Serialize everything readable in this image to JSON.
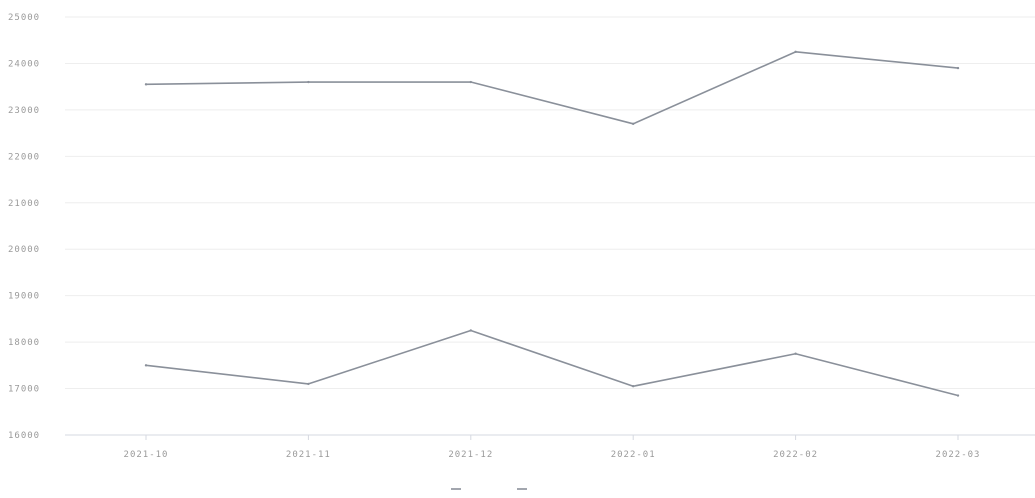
{
  "chart_data": {
    "type": "line",
    "x": [
      "2021-10",
      "2021-11",
      "2021-12",
      "2022-01",
      "2022-02",
      "2022-03"
    ],
    "series": [
      {
        "name": "",
        "color": "#8a909a",
        "values": [
          23550,
          23600,
          23600,
          22700,
          24250,
          23900
        ]
      },
      {
        "name": "",
        "color": "#8a909a",
        "values": [
          17500,
          17100,
          18250,
          17050,
          17750,
          16850
        ]
      }
    ],
    "yticks": [
      16000,
      17000,
      18000,
      19000,
      20000,
      21000,
      22000,
      23000,
      24000,
      25000
    ],
    "ylim": [
      16000,
      25000
    ],
    "grid": true,
    "legend_position": "bottom",
    "title": "",
    "xlabel": "",
    "ylabel": ""
  }
}
